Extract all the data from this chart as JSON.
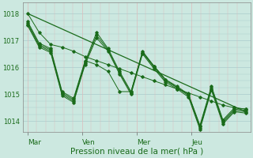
{
  "title": "",
  "xlabel": "Pression niveau de la mer( hPa )",
  "ylabel": "",
  "bg_color": "#cce8e0",
  "plot_bg_color": "#cce8e0",
  "grid_major_color": "#aacccc",
  "grid_minor_color": "#ddbbbb",
  "line_color": "#1a6b1a",
  "ylim": [
    1013.6,
    1018.4
  ],
  "yticks": [
    1014,
    1015,
    1016,
    1017,
    1018
  ],
  "day_labels": [
    "Mar",
    "Ven",
    "Mer",
    "Jeu"
  ],
  "day_label_color": "#1a6b1a",
  "series": [
    [
      1018.0,
      1017.3,
      1016.85,
      1016.75,
      1016.6,
      1016.4,
      1016.25,
      1016.1,
      1015.95,
      1015.8,
      1015.65,
      1015.5,
      1015.35,
      1015.2,
      1015.05,
      1014.9,
      1014.75,
      1014.6,
      1014.5,
      1014.45
    ],
    [
      1017.7,
      1016.9,
      1016.7,
      1015.1,
      1014.85,
      1016.25,
      1016.1,
      1015.85,
      1015.1,
      1015.1,
      1016.55,
      1016.05,
      1015.55,
      1015.25,
      1015.0,
      1013.85,
      1015.3,
      1014.05,
      1014.5,
      1014.45
    ],
    [
      1017.65,
      1016.85,
      1016.65,
      1015.05,
      1014.8,
      1016.2,
      1017.3,
      1016.7,
      1015.85,
      1015.1,
      1016.6,
      1016.05,
      1015.55,
      1015.3,
      1015.0,
      1013.8,
      1015.25,
      1014.0,
      1014.45,
      1014.4
    ],
    [
      1017.6,
      1016.8,
      1016.6,
      1015.0,
      1014.75,
      1016.15,
      1017.2,
      1016.65,
      1015.8,
      1015.05,
      1016.55,
      1016.0,
      1015.5,
      1015.25,
      1014.95,
      1013.75,
      1015.2,
      1013.95,
      1014.4,
      1014.35
    ],
    [
      1017.55,
      1016.75,
      1016.55,
      1014.95,
      1014.7,
      1016.1,
      1017.1,
      1016.6,
      1015.75,
      1015.0,
      1016.5,
      1015.95,
      1015.45,
      1015.2,
      1014.9,
      1013.7,
      1015.15,
      1013.9,
      1014.35,
      1014.3
    ]
  ],
  "trend_line": [
    1018.0,
    1014.35
  ],
  "n_points": 20,
  "num_days": 4,
  "minor_grid_subdivisions": 6
}
